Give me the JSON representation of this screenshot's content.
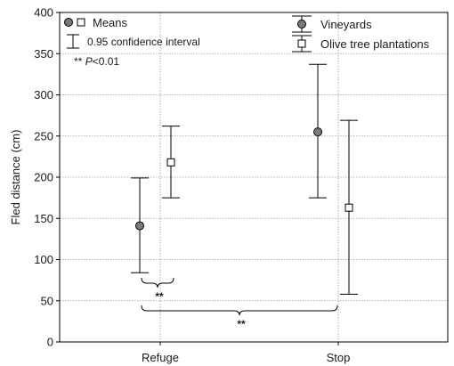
{
  "chart_data": {
    "type": "scatter",
    "ylabel": "Fled distance (cm)",
    "xlabel": "",
    "ylim": [
      0,
      400
    ],
    "yticks": [
      0,
      50,
      100,
      150,
      200,
      250,
      300,
      350,
      400
    ],
    "categories": [
      "Refuge",
      "Stop"
    ],
    "grid": true,
    "series": [
      {
        "name": "Vineyards",
        "marker": "circle",
        "color": "#7a7a7a",
        "means": [
          141,
          255
        ],
        "ci_low": [
          84,
          175
        ],
        "ci_high": [
          199,
          337
        ]
      },
      {
        "name": "Olive tree plantations",
        "marker": "square",
        "color": "#ffffff",
        "means": [
          218,
          163
        ],
        "ci_low": [
          175,
          58
        ],
        "ci_high": [
          262,
          269
        ]
      }
    ],
    "legend_inner": {
      "means_label": "Means",
      "ci_label": "0.95 confidence interval",
      "sig_prefix": "** ",
      "sig_italic": "P",
      "sig_suffix": "<0.01"
    },
    "significance": [
      {
        "label": "**",
        "between": "Refuge: Vineyards vs Olive tree plantations"
      },
      {
        "label": "**",
        "between": "Vineyards: Refuge vs Stop"
      }
    ]
  }
}
